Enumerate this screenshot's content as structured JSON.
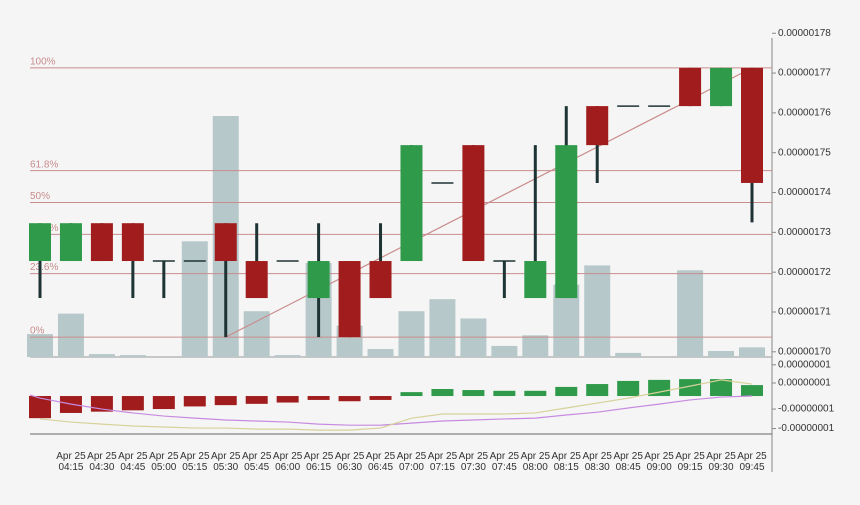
{
  "chart_data": [
    {
      "type": "candlestick",
      "categories": [
        null,
        "Apr 25 04:15",
        "Apr 25 04:30",
        "Apr 25 04:45",
        "Apr 25 05:00",
        "Apr 25 05:15",
        "Apr 25 05:30",
        "Apr 25 05:45",
        "Apr 25 06:00",
        "Apr 25 06:15",
        "Apr 25 06:30",
        "Apr 25 06:45",
        "Apr 25 07:00",
        "Apr 25 07:15",
        "Apr 25 07:30",
        "Apr 25 07:45",
        "Apr 25 08:00",
        "Apr 25 08:15",
        "Apr 25 08:30",
        "Apr 25 08:45",
        "Apr 25 09:00",
        "Apr 25 09:15",
        "Apr 25 09:30",
        "Apr 25 09:45"
      ],
      "open": [
        1.7228e-06,
        1.7228e-06,
        1.7323e-06,
        1.7323e-06,
        1.7228e-06,
        1.7228e-06,
        1.7323e-06,
        1.7228e-06,
        1.7228e-06,
        1.7135e-06,
        1.7228e-06,
        1.7228e-06,
        1.7228e-06,
        1.7424e-06,
        1.7519e-06,
        1.7228e-06,
        1.7135e-06,
        1.7135e-06,
        1.7617e-06,
        1.7617e-06,
        1.7617e-06,
        1.7713e-06,
        1.7617e-06,
        1.7713e-06
      ],
      "high": [
        1.7323e-06,
        1.7323e-06,
        1.7323e-06,
        1.7323e-06,
        1.7228e-06,
        1.7228e-06,
        1.7323e-06,
        1.7323e-06,
        1.7228e-06,
        1.7323e-06,
        1.7228e-06,
        1.7323e-06,
        1.7519e-06,
        1.7424e-06,
        1.7519e-06,
        1.7228e-06,
        1.7519e-06,
        1.7617e-06,
        1.7617e-06,
        1.7617e-06,
        1.7617e-06,
        1.7713e-06,
        1.7713e-06,
        1.7713e-06
      ],
      "low": [
        1.7135e-06,
        1.7228e-06,
        1.7228e-06,
        1.7135e-06,
        1.7135e-06,
        1.7228e-06,
        1.7037e-06,
        1.7135e-06,
        1.7228e-06,
        1.7037e-06,
        1.7037e-06,
        1.7135e-06,
        1.7228e-06,
        1.7424e-06,
        1.7228e-06,
        1.7135e-06,
        1.7135e-06,
        1.7135e-06,
        1.7424e-06,
        1.7617e-06,
        1.7617e-06,
        1.7617e-06,
        1.7617e-06,
        1.7325e-06
      ],
      "close": [
        1.7323e-06,
        1.7323e-06,
        1.7228e-06,
        1.7228e-06,
        1.7228e-06,
        1.7228e-06,
        1.7228e-06,
        1.7135e-06,
        1.7228e-06,
        1.7228e-06,
        1.7037e-06,
        1.7135e-06,
        1.7519e-06,
        1.7424e-06,
        1.7228e-06,
        1.7228e-06,
        1.7228e-06,
        1.7519e-06,
        1.7519e-06,
        1.7617e-06,
        1.7617e-06,
        1.7617e-06,
        1.7713e-06,
        1.7424e-06
      ],
      "volume": [
        9.5,
        18,
        1.2,
        0.8,
        0,
        48,
        100,
        19,
        0.8,
        39,
        13,
        3.3,
        19,
        24,
        16,
        4.6,
        9,
        30,
        38,
        1.7,
        0,
        36,
        2.5,
        4
      ],
      "up_color": "#2e9a4a",
      "down_color": "#a11d1d",
      "wick_color": "#1e3434",
      "volume_color": "#b7c8ca",
      "fib_levels": [
        {
          "label": "100%",
          "value": 1.7713e-06
        },
        {
          "label": "61.8%",
          "value": 1.7455e-06
        },
        {
          "label": "50%",
          "value": 1.7375e-06
        },
        {
          "label": "38.2%",
          "value": 1.7295e-06
        },
        {
          "label": "23.6%",
          "value": 1.71965e-06
        },
        {
          "label": "0%",
          "value": 1.7037e-06
        }
      ],
      "fib_color": "#c98c8c",
      "ylim": [
        1.6987e-06,
        1.7783e-06
      ],
      "yticks": [
        {
          "value": 1.78e-06,
          "label": "0.00000178"
        },
        {
          "value": 1.77e-06,
          "label": "0.00000177"
        },
        {
          "value": 1.76e-06,
          "label": "0.00000176"
        },
        {
          "value": 1.75e-06,
          "label": "0.00000175"
        },
        {
          "value": 1.74e-06,
          "label": "0.00000174"
        },
        {
          "value": 1.73e-06,
          "label": "0.00000173"
        },
        {
          "value": 1.72e-06,
          "label": "0.00000172"
        },
        {
          "value": 1.71e-06,
          "label": "0.00000171"
        },
        {
          "value": 1.7e-06,
          "label": "0.00000170"
        }
      ]
    },
    {
      "type": "macd",
      "histogram": [
        -8.5e-09,
        -6.5e-09,
        -6e-09,
        -5.5e-09,
        -5e-09,
        -4e-09,
        -3.5e-09,
        -3e-09,
        -2.5e-09,
        -1.5e-09,
        -2e-09,
        -1.5e-09,
        1.5e-09,
        2.7e-09,
        2.3e-09,
        2e-09,
        2e-09,
        3.5e-09,
        4.6e-09,
        5.8e-09,
        6.2e-09,
        6.5e-09,
        6.5e-09,
        4.2e-09
      ],
      "series": [
        {
          "color": "#c68be0",
          "values": [
            -7.7e-10,
            -3.1e-09,
            -5e-09,
            -6.5e-09,
            -7.7e-09,
            -8.5e-09,
            -9.2e-09,
            -9.6e-09,
            -1e-08,
            -1.08e-08,
            -1.12e-08,
            -1.12e-08,
            -1.04e-08,
            -9.6e-09,
            -9.2e-09,
            -8.8e-09,
            -8.5e-09,
            -7.3e-09,
            -6.2e-09,
            -4.6e-09,
            -3.1e-09,
            -1.5e-09,
            -4e-10,
            0
          ]
        },
        {
          "color": "#d6d29a",
          "values": [
            -8.8e-09,
            -1e-08,
            -1.08e-08,
            -1.15e-08,
            -1.19e-08,
            -1.23e-08,
            -1.23e-08,
            -1.27e-08,
            -1.27e-08,
            -1.31e-08,
            -1.31e-08,
            -1.23e-08,
            -8.5e-09,
            -6.9e-09,
            -6.9e-09,
            -6.9e-09,
            -6.5e-09,
            -4.6e-09,
            -2.7e-09,
            -8e-10,
            1.5e-09,
            3.8e-09,
            6.2e-09,
            4.6e-09
          ]
        }
      ],
      "up_color": "#2e9a4a",
      "down_color": "#a11d1d",
      "ylim": [
        -1.42e-08,
        1.23e-08
      ],
      "yticks": [
        {
          "value": 1.2e-08,
          "label": "0.00000001"
        },
        {
          "value": 5e-09,
          "label": "0.00000001"
        },
        {
          "value": -5e-09,
          "label": "-0.00000001"
        },
        {
          "value": -1.25e-08,
          "label": "-0.00000001"
        }
      ]
    }
  ]
}
